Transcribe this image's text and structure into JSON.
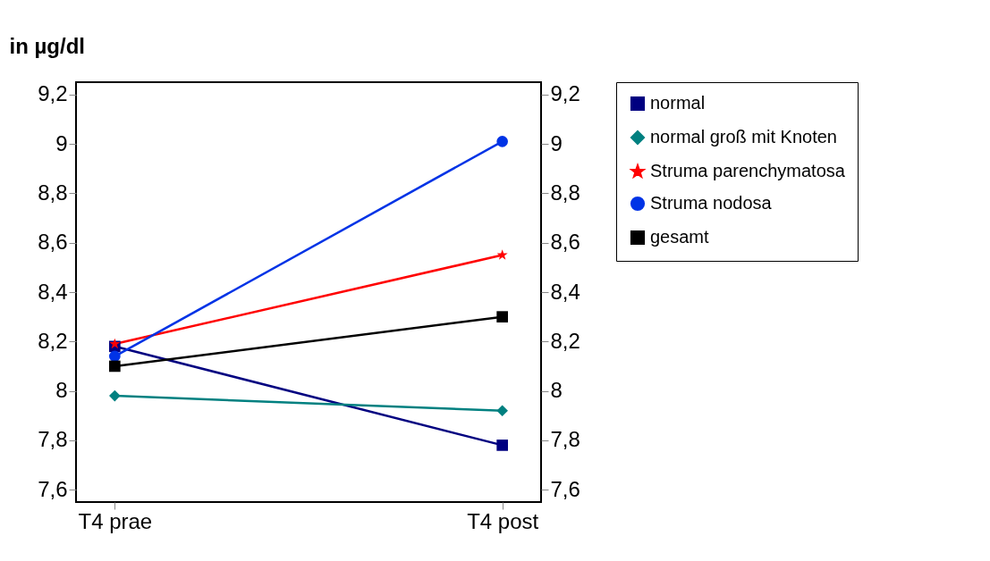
{
  "chart_data": {
    "type": "line",
    "ylabel": "in µg/dl",
    "categories": [
      "T4 prae",
      "T4 post"
    ],
    "series": [
      {
        "name": "normal",
        "color": "#000080",
        "marker": "square",
        "values": [
          8.18,
          7.78
        ]
      },
      {
        "name": "normal groß mit Knoten",
        "color": "#008080",
        "marker": "diamond",
        "values": [
          7.98,
          7.92
        ]
      },
      {
        "name": "Struma parenchymatosa",
        "color": "#ff0000",
        "marker": "star",
        "values": [
          8.19,
          8.55
        ]
      },
      {
        "name": "Struma nodosa",
        "color": "#0033e6",
        "marker": "circle",
        "values": [
          8.14,
          9.01
        ]
      },
      {
        "name": "gesamt",
        "color": "#000000",
        "marker": "square",
        "values": [
          8.1,
          8.3
        ]
      }
    ],
    "ylim": [
      7.55,
      9.25
    ],
    "yticks": [
      {
        "value": 7.6,
        "label": "7,6"
      },
      {
        "value": 7.8,
        "label": "7,8"
      },
      {
        "value": 8,
        "label": "8"
      },
      {
        "value": 8.2,
        "label": "8,2"
      },
      {
        "value": 8.4,
        "label": "8,4"
      },
      {
        "value": 8.6,
        "label": "8,6"
      },
      {
        "value": 8.8,
        "label": "8,8"
      },
      {
        "value": 9,
        "label": "9"
      },
      {
        "value": 9.2,
        "label": "9,2"
      }
    ],
    "y2lim": [
      7.55,
      9.25
    ],
    "y2ticks": [
      {
        "value": 7.6,
        "label": "7,6"
      },
      {
        "value": 7.8,
        "label": "7,8"
      },
      {
        "value": 8,
        "label": "8"
      },
      {
        "value": 8.2,
        "label": "8,2"
      },
      {
        "value": 8.4,
        "label": "8,4"
      },
      {
        "value": 8.6,
        "label": "8,6"
      },
      {
        "value": 8.8,
        "label": "8,8"
      },
      {
        "value": 9,
        "label": "9"
      },
      {
        "value": 9.2,
        "label": "9,2"
      }
    ],
    "grid": false,
    "legend": "right",
    "line_style": "solid"
  }
}
